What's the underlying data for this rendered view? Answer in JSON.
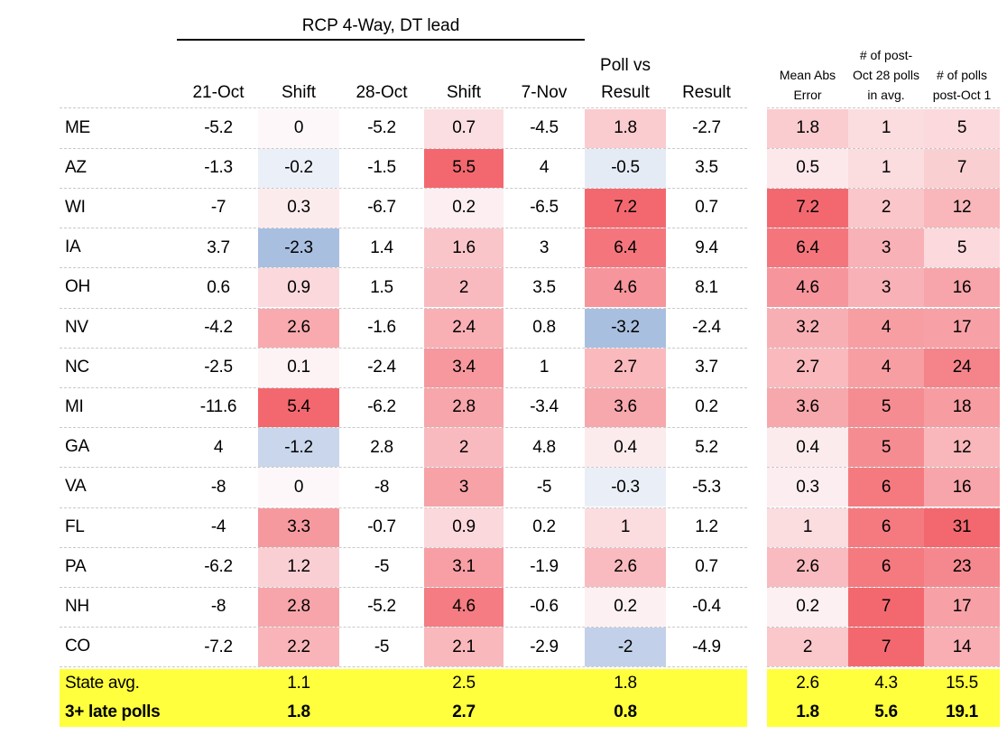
{
  "title": "RCP 4-Way, DT lead",
  "columns": {
    "left": [
      "21-Oct",
      "Shift",
      "28-Oct",
      "Shift",
      "7-Nov",
      "Poll vs\nResult",
      "Result"
    ],
    "right": [
      "Mean Abs\nError",
      "# of post-\nOct 28 polls\nin avg.",
      "# of polls\npost-Oct 1"
    ]
  },
  "colors": {
    "highlight": "#ffff3d",
    "heat_red": "#f3686f",
    "heat_blue": "#a9bfe0",
    "white": "#ffffff",
    "row_separator": "#c9c9c9"
  },
  "chart_data": {
    "type": "table",
    "title": "RCP 4-Way, DT lead",
    "states": [
      "ME",
      "AZ",
      "WI",
      "IA",
      "OH",
      "NV",
      "NC",
      "MI",
      "GA",
      "VA",
      "FL",
      "PA",
      "NH",
      "CO"
    ],
    "oct21": [
      -5.2,
      -1.3,
      -7,
      3.7,
      0.6,
      -4.2,
      -2.5,
      -11.6,
      4,
      -8,
      -4,
      -6.2,
      -8,
      -7.2
    ],
    "shift1": [
      0,
      -0.2,
      0.3,
      -2.3,
      0.9,
      2.6,
      0.1,
      5.4,
      -1.2,
      0,
      3.3,
      1.2,
      2.8,
      2.2
    ],
    "oct28": [
      -5.2,
      -1.5,
      -6.7,
      1.4,
      1.5,
      -1.6,
      -2.4,
      -6.2,
      2.8,
      -8,
      -0.7,
      -5,
      -5.2,
      -5
    ],
    "shift2": [
      0.7,
      5.5,
      0.2,
      1.6,
      2,
      2.4,
      3.4,
      2.8,
      2,
      3,
      0.9,
      3.1,
      4.6,
      2.1
    ],
    "nov7": [
      -4.5,
      4,
      -6.5,
      3,
      3.5,
      0.8,
      1,
      -3.4,
      4.8,
      -5,
      0.2,
      -1.9,
      -0.6,
      -2.9
    ],
    "poll_vs_result": [
      1.8,
      -0.5,
      7.2,
      6.4,
      4.6,
      -3.2,
      2.7,
      3.6,
      0.4,
      -0.3,
      1,
      2.6,
      0.2,
      -2
    ],
    "result": [
      -2.7,
      3.5,
      0.7,
      9.4,
      8.1,
      -2.4,
      3.7,
      0.2,
      5.2,
      -5.3,
      1.2,
      0.7,
      -0.4,
      -4.9
    ],
    "mean_abs_error": [
      1.8,
      0.5,
      7.2,
      6.4,
      4.6,
      3.2,
      2.7,
      3.6,
      0.4,
      0.3,
      1,
      2.6,
      0.2,
      2
    ],
    "late_polls_in_avg": [
      1,
      1,
      2,
      3,
      3,
      4,
      4,
      5,
      5,
      6,
      6,
      6,
      7,
      7
    ],
    "polls_post_oct1": [
      5,
      7,
      12,
      5,
      16,
      17,
      24,
      18,
      12,
      16,
      31,
      23,
      17,
      14
    ],
    "summary_rows": [
      {
        "label": "State avg.",
        "shift1": "1.1",
        "shift2": "2.5",
        "poll_vs_result": "1.8",
        "mean_abs_error": "2.6",
        "late_polls_in_avg": "4.3",
        "polls_post_oct1": "15.5",
        "bold": false
      },
      {
        "label": "3+ late polls",
        "shift1": "1.8",
        "shift2": "2.7",
        "poll_vs_result": "0.8",
        "mean_abs_error": "1.8",
        "late_polls_in_avg": "5.6",
        "polls_post_oct1": "19.1",
        "bold": true
      }
    ]
  }
}
